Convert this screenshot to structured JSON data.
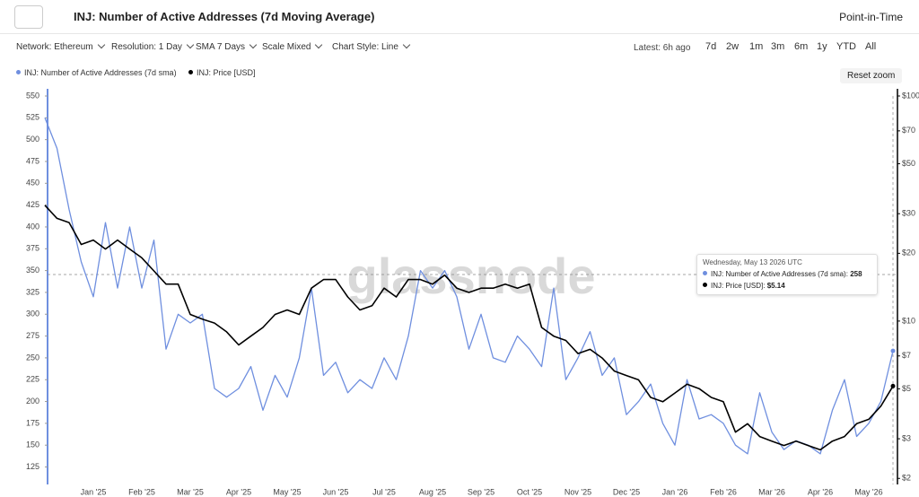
{
  "header": {
    "title": "INJ: Number of Active Addresses (7d Moving Average)",
    "point_in_time": "Point-in-Time"
  },
  "filters": [
    "Network: Ethereum",
    "Resolution: 1 Day",
    "SMA 7 Days",
    "Scale Mixed",
    "Chart Style: Line"
  ],
  "latest": "Latest: 6h ago",
  "ranges": [
    "7d",
    "2w",
    "1m",
    "3m",
    "6m",
    "1y",
    "YTD",
    "All"
  ],
  "reset_zoom": "Reset zoom",
  "watermark": "glassnode",
  "tooltip": {
    "title": "Wednesday, May 13 2026 UTC",
    "entries": [
      {
        "label": "INJ: Number of Active Addresses (7d sma):"
      },
      {
        "label": "INJ: Price [USD]:",
        "value_label": "$5.14"
      }
    ]
  },
  "chart_data": {
    "type": "line",
    "categories": [
      null,
      null,
      null,
      null,
      "Jan '25",
      null,
      null,
      null,
      "Feb '25",
      null,
      null,
      null,
      "Mar '25",
      null,
      null,
      null,
      "Apr '25",
      null,
      null,
      null,
      "May '25",
      null,
      null,
      null,
      "Jun '25",
      null,
      null,
      null,
      "Jul '25",
      null,
      null,
      null,
      "Aug '25",
      null,
      null,
      null,
      "Sep '25",
      null,
      null,
      null,
      "Oct '25",
      null,
      null,
      null,
      "Nov '25",
      null,
      null,
      null,
      "Dec '25",
      null,
      null,
      null,
      "Jan '26",
      null,
      null,
      null,
      "Feb '26",
      null,
      null,
      null,
      "Mar '26",
      null,
      null,
      null,
      "Apr '26",
      null,
      null,
      null,
      "May '26",
      null,
      null
    ],
    "series": [
      {
        "name": "INJ: Number of Active Addresses (7d sma)",
        "color": "#6f8fdf",
        "values": [
          525,
          490,
          420,
          360,
          320,
          405,
          330,
          400,
          330,
          385,
          260,
          300,
          290,
          300,
          215,
          205,
          215,
          240,
          190,
          230,
          205,
          250,
          330,
          230,
          245,
          210,
          225,
          215,
          250,
          225,
          275,
          350,
          330,
          350,
          320,
          260,
          300,
          250,
          245,
          275,
          260,
          240,
          330,
          225,
          250,
          280,
          230,
          250,
          185,
          200,
          220,
          175,
          150,
          225,
          180,
          185,
          175,
          150,
          140,
          210,
          165,
          145,
          155,
          150,
          140,
          190,
          225,
          160,
          175,
          200,
          258
        ]
      },
      {
        "name": "INJ: Price [USD]",
        "color": "#000000",
        "axis": "y2",
        "values": [
          32.7,
          28.6,
          27.4,
          21.9,
          22.9,
          20.9,
          22.9,
          20.9,
          19.1,
          16.7,
          14.6,
          14.6,
          10.7,
          10.2,
          9.8,
          8.96,
          7.83,
          8.57,
          9.37,
          10.7,
          11.2,
          10.7,
          14.0,
          15.3,
          15.3,
          12.8,
          11.2,
          11.7,
          14.0,
          12.8,
          15.3,
          15.3,
          14.6,
          16.0,
          14.0,
          13.4,
          14.0,
          14.0,
          14.6,
          14.0,
          14.6,
          9.37,
          8.57,
          8.2,
          7.17,
          7.49,
          6.85,
          6.0,
          5.73,
          5.48,
          4.58,
          4.38,
          4.79,
          5.24,
          5.01,
          4.58,
          4.38,
          3.21,
          3.5,
          3.07,
          2.93,
          2.8,
          2.93,
          2.8,
          2.68,
          2.93,
          3.07,
          3.5,
          3.66,
          4.19,
          5.14
        ]
      }
    ],
    "ylim": [
      105,
      550
    ],
    "yticks": [
      125,
      150,
      175,
      200,
      225,
      250,
      275,
      300,
      325,
      350,
      375,
      400,
      425,
      450,
      475,
      500,
      525,
      550
    ],
    "y2lim": [
      1.88,
      100
    ],
    "y2scale": "log",
    "y2ticks": [
      {
        "value": 2,
        "label": "$2"
      },
      {
        "value": 3,
        "label": "$3"
      },
      {
        "value": 5,
        "label": "$5"
      },
      {
        "value": 7,
        "label": "$7"
      },
      {
        "value": 10,
        "label": "$10"
      },
      {
        "value": 20,
        "label": "$20"
      },
      {
        "value": 30,
        "label": "$30"
      },
      {
        "value": 50,
        "label": "$50"
      },
      {
        "value": 70,
        "label": "$70"
      },
      {
        "value": 100,
        "label": "$100"
      }
    ],
    "grid": false
  }
}
